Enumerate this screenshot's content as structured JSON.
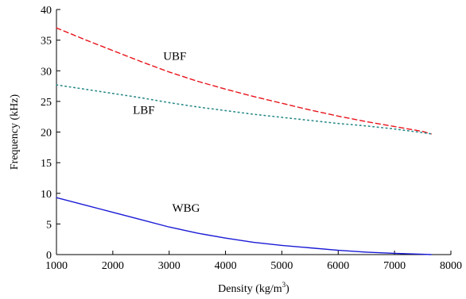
{
  "chart_data": {
    "type": "line",
    "title": "",
    "xlabel": "Density (kg/m",
    "xlabel_superscript": "3",
    "xlabel_suffix": ")",
    "ylabel": "Frequency (kHz)",
    "xlim": [
      1000,
      8000
    ],
    "ylim": [
      0,
      40
    ],
    "x_ticks": [
      1000,
      2000,
      3000,
      4000,
      5000,
      6000,
      7000,
      8000
    ],
    "y_ticks": [
      0,
      5,
      10,
      15,
      20,
      25,
      30,
      35,
      40
    ],
    "grid": false,
    "series": [
      {
        "name": "UBF",
        "style": "dashed",
        "color": "#e8141b",
        "x": [
          1000,
          1500,
          2000,
          2500,
          3000,
          3500,
          4000,
          4500,
          5000,
          5500,
          6000,
          6500,
          7000,
          7500,
          7650
        ],
        "y": [
          37.0,
          35.1,
          33.3,
          31.5,
          29.8,
          28.3,
          27.0,
          25.8,
          24.7,
          23.6,
          22.6,
          21.7,
          20.9,
          20.1,
          19.7
        ]
      },
      {
        "name": "LBF",
        "style": "dotted",
        "color": "#2a8a8a",
        "x": [
          1000,
          1500,
          2000,
          2500,
          3000,
          3500,
          4000,
          4500,
          5000,
          5500,
          6000,
          6500,
          7000,
          7500,
          7650
        ],
        "y": [
          27.7,
          27.0,
          26.3,
          25.6,
          24.8,
          24.1,
          23.5,
          22.9,
          22.4,
          21.9,
          21.4,
          21.0,
          20.5,
          19.9,
          19.7
        ]
      },
      {
        "name": "WBG",
        "style": "solid",
        "color": "#1a1ad6",
        "x": [
          1000,
          1500,
          2000,
          2500,
          3000,
          3500,
          4000,
          4500,
          5000,
          5500,
          6000,
          6500,
          7000,
          7500,
          7650
        ],
        "y": [
          9.3,
          8.1,
          6.9,
          5.7,
          4.5,
          3.5,
          2.7,
          2.0,
          1.5,
          1.1,
          0.7,
          0.4,
          0.2,
          0.05,
          0.0
        ]
      }
    ],
    "annotations": [
      {
        "text": "UBF",
        "x": 3100,
        "y": 31.8
      },
      {
        "text": "LBF",
        "x": 2550,
        "y": 23.0
      },
      {
        "text": "WBG",
        "x": 3300,
        "y": 7.0
      }
    ]
  }
}
